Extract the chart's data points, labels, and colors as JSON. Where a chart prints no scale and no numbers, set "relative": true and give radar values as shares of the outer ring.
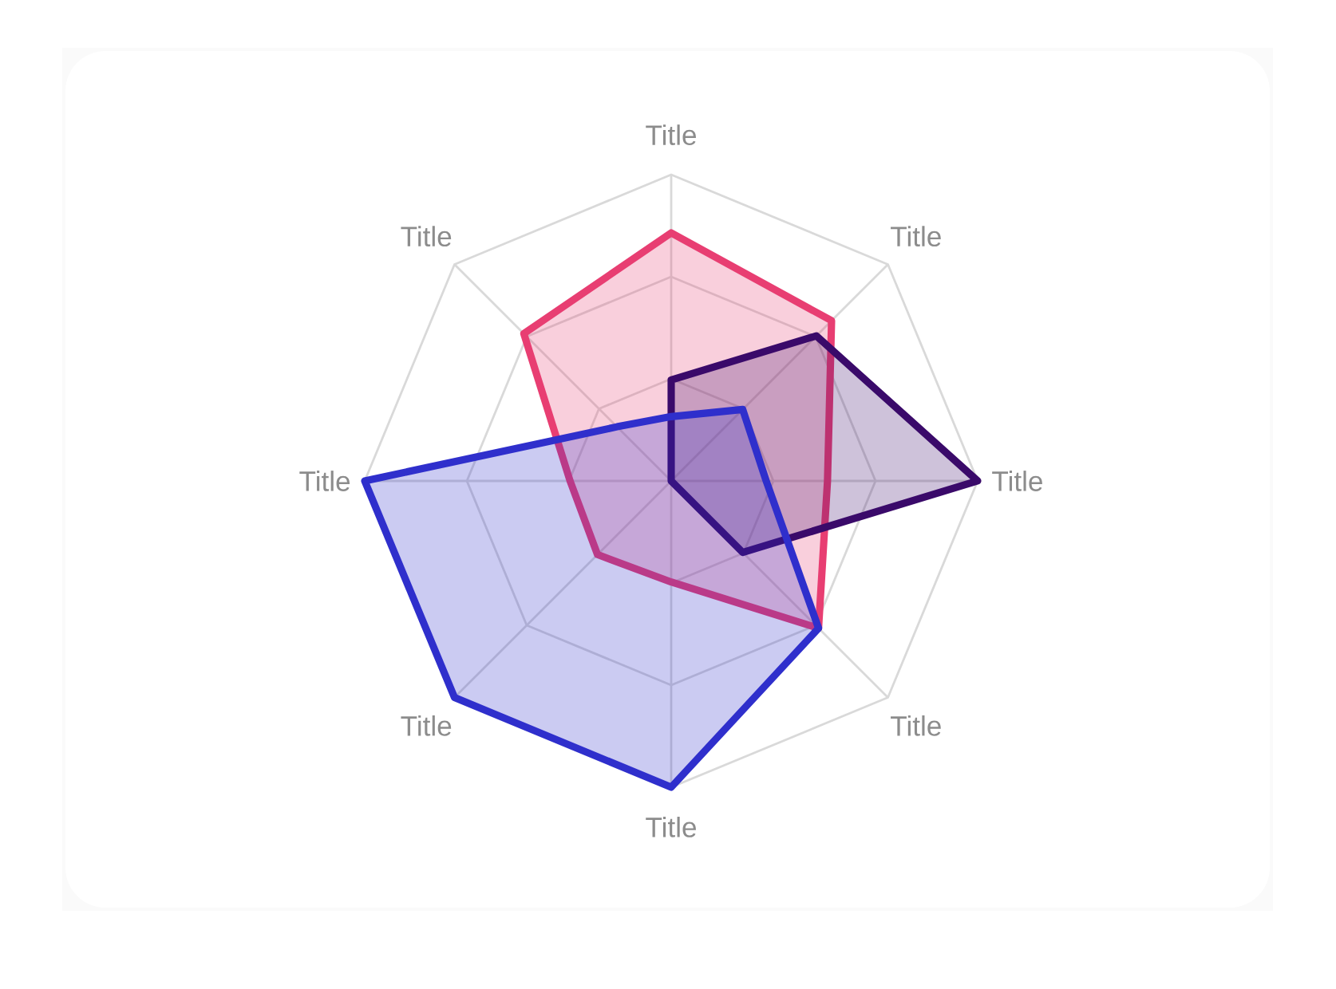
{
  "chart_data": {
    "type": "radar",
    "relative": true,
    "grid": true,
    "categories": [
      "Title",
      "Title",
      "Title",
      "Title",
      "Title",
      "Title",
      "Title",
      "Title"
    ],
    "series": [
      {
        "color": "#e83e72",
        "values": [
          0.81,
          0.74,
          0.51,
          0.68,
          0.33,
          0.34,
          0.33,
          0.68
        ]
      },
      {
        "color": "#3a0a6a",
        "values": [
          0.33,
          0.67,
          1.0,
          0.33,
          0,
          0,
          0,
          0
        ]
      },
      {
        "color": "#2f2fcc",
        "values": [
          0.21,
          0.33,
          0.31,
          0.68,
          1.0,
          1.0,
          1.0,
          0.25
        ]
      }
    ]
  }
}
